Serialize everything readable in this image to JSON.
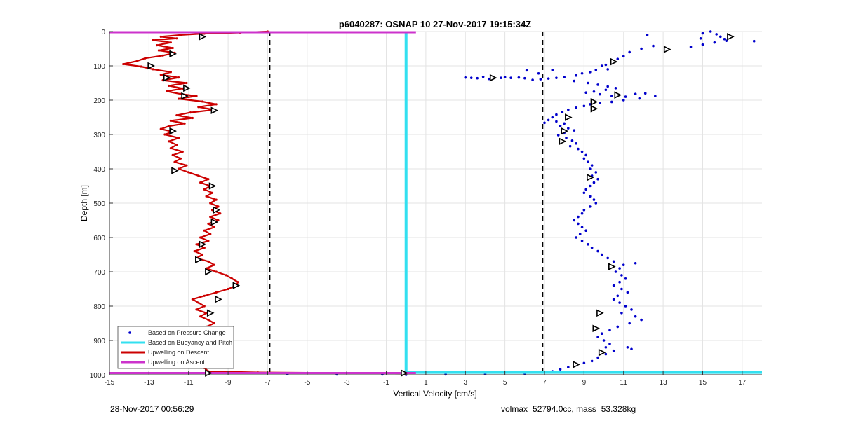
{
  "chart_data": {
    "type": "scatter",
    "title": "p6040287: OSNAP 10 27-Nov-2017 19:15:34Z",
    "xlabel": "Vertical Velocity [cm/s]",
    "ylabel": "Depth [m]",
    "xlim": [
      -15,
      18
    ],
    "ylim": [
      1000,
      0
    ],
    "y_reversed": true,
    "grid": true,
    "xticks": [
      -15,
      -13,
      -11,
      -9,
      -7,
      -5,
      -3,
      -1,
      1,
      3,
      5,
      7,
      9,
      11,
      13,
      15,
      17
    ],
    "yticks": [
      0,
      100,
      200,
      300,
      400,
      500,
      600,
      700,
      800,
      900,
      1000
    ],
    "legend_position": "bottom-left",
    "reference_lines_x": [
      -6.9,
      6.9
    ],
    "series": [
      {
        "name": "Based on Pressure Change",
        "kind": "points",
        "color": "#0000cc",
        "points": [
          [
            15.4,
            0
          ],
          [
            15.0,
            5
          ],
          [
            15.7,
            8
          ],
          [
            15.9,
            15
          ],
          [
            16.1,
            22
          ],
          [
            16.2,
            27
          ],
          [
            14.9,
            20
          ],
          [
            15.6,
            32
          ],
          [
            15.0,
            38
          ],
          [
            14.4,
            45
          ],
          [
            17.6,
            28
          ],
          [
            12.2,
            10
          ],
          [
            12.5,
            42
          ],
          [
            11.9,
            50
          ],
          [
            11.3,
            60
          ],
          [
            11.0,
            72
          ],
          [
            10.7,
            80
          ],
          [
            10.4,
            88
          ],
          [
            10.1,
            97
          ],
          [
            9.9,
            100
          ],
          [
            10.2,
            110
          ],
          [
            9.6,
            112
          ],
          [
            9.3,
            118
          ],
          [
            8.9,
            122
          ],
          [
            8.6,
            128
          ],
          [
            8.0,
            133
          ],
          [
            7.6,
            135
          ],
          [
            7.2,
            137
          ],
          [
            6.8,
            139
          ],
          [
            6.4,
            141
          ],
          [
            6.0,
            136
          ],
          [
            5.7,
            134
          ],
          [
            5.3,
            135
          ],
          [
            5.0,
            133
          ],
          [
            4.8,
            135
          ],
          [
            4.2,
            138
          ],
          [
            3.9,
            132
          ],
          [
            3.6,
            136
          ],
          [
            3.3,
            135
          ],
          [
            3.0,
            134
          ],
          [
            6.1,
            113
          ],
          [
            7.4,
            112
          ],
          [
            6.7,
            122
          ],
          [
            8.5,
            144
          ],
          [
            9.2,
            150
          ],
          [
            9.7,
            155
          ],
          [
            10.2,
            160
          ],
          [
            10.6,
            165
          ],
          [
            10.1,
            170
          ],
          [
            9.5,
            175
          ],
          [
            9.1,
            178
          ],
          [
            9.8,
            183
          ],
          [
            10.4,
            188
          ],
          [
            11.1,
            190
          ],
          [
            11.6,
            182
          ],
          [
            12.1,
            180
          ],
          [
            12.6,
            188
          ],
          [
            11.8,
            195
          ],
          [
            11.0,
            200
          ],
          [
            10.4,
            205
          ],
          [
            9.8,
            208
          ],
          [
            9.3,
            212
          ],
          [
            9.0,
            217
          ],
          [
            8.6,
            222
          ],
          [
            8.2,
            228
          ],
          [
            7.9,
            235
          ],
          [
            7.6,
            242
          ],
          [
            7.4,
            250
          ],
          [
            7.2,
            258
          ],
          [
            7.0,
            266
          ],
          [
            7.6,
            262
          ],
          [
            8.0,
            268
          ],
          [
            7.8,
            275
          ],
          [
            8.2,
            282
          ],
          [
            8.5,
            288
          ],
          [
            8.0,
            295
          ],
          [
            7.7,
            302
          ],
          [
            8.1,
            310
          ],
          [
            8.4,
            318
          ],
          [
            8.6,
            326
          ],
          [
            8.3,
            334
          ],
          [
            8.7,
            342
          ],
          [
            8.9,
            350
          ],
          [
            9.1,
            360
          ],
          [
            9.0,
            370
          ],
          [
            9.2,
            380
          ],
          [
            9.4,
            390
          ],
          [
            9.3,
            400
          ],
          [
            9.6,
            410
          ],
          [
            9.4,
            420
          ],
          [
            9.7,
            430
          ],
          [
            9.5,
            440
          ],
          [
            9.3,
            450
          ],
          [
            9.1,
            460
          ],
          [
            9.0,
            470
          ],
          [
            9.3,
            480
          ],
          [
            9.5,
            490
          ],
          [
            9.6,
            500
          ],
          [
            9.3,
            510
          ],
          [
            9.0,
            520
          ],
          [
            8.9,
            530
          ],
          [
            8.7,
            540
          ],
          [
            8.5,
            550
          ],
          [
            8.7,
            560
          ],
          [
            8.9,
            570
          ],
          [
            9.1,
            580
          ],
          [
            8.8,
            590
          ],
          [
            8.6,
            600
          ],
          [
            8.9,
            610
          ],
          [
            9.2,
            620
          ],
          [
            9.4,
            630
          ],
          [
            9.7,
            640
          ],
          [
            9.9,
            650
          ],
          [
            10.2,
            660
          ],
          [
            10.5,
            670
          ],
          [
            11.0,
            680
          ],
          [
            11.6,
            675
          ],
          [
            10.8,
            690
          ],
          [
            10.6,
            700
          ],
          [
            10.9,
            710
          ],
          [
            11.1,
            720
          ],
          [
            10.8,
            730
          ],
          [
            10.5,
            740
          ],
          [
            10.9,
            750
          ],
          [
            11.2,
            760
          ],
          [
            10.7,
            770
          ],
          [
            10.5,
            780
          ],
          [
            10.8,
            790
          ],
          [
            11.1,
            800
          ],
          [
            11.4,
            810
          ],
          [
            10.9,
            820
          ],
          [
            11.6,
            830
          ],
          [
            11.9,
            840
          ],
          [
            11.3,
            850
          ],
          [
            10.7,
            860
          ],
          [
            10.3,
            870
          ],
          [
            9.9,
            880
          ],
          [
            9.7,
            890
          ],
          [
            10.0,
            900
          ],
          [
            10.3,
            910
          ],
          [
            10.1,
            920
          ],
          [
            10.5,
            930
          ],
          [
            11.2,
            920
          ],
          [
            11.4,
            925
          ],
          [
            10.1,
            940
          ],
          [
            9.7,
            950
          ],
          [
            9.4,
            960
          ],
          [
            9.0,
            966
          ],
          [
            8.6,
            972
          ],
          [
            8.2,
            978
          ],
          [
            7.8,
            984
          ],
          [
            7.4,
            990
          ],
          [
            6.0,
            996
          ],
          [
            4.0,
            998
          ],
          [
            2.0,
            999
          ],
          [
            -1.2,
            999
          ],
          [
            -3.5,
            999
          ],
          [
            -6.0,
            998
          ],
          [
            0.0,
            1000
          ]
        ]
      },
      {
        "name": "Based on Buoyancy and Pitch",
        "kind": "line",
        "color": "#33e0f0",
        "line_x": 0.0,
        "line_depth": [
          0,
          990
        ],
        "bottom_x": [
          0.0,
          18
        ],
        "bottom_depth": 993
      },
      {
        "name": "Upwelling on Descent",
        "kind": "line",
        "color": "#cc0000",
        "points": [
          [
            -7.0,
            0
          ],
          [
            -8.4,
            3
          ],
          [
            -10.2,
            6
          ],
          [
            -11.4,
            10
          ],
          [
            -12.4,
            15
          ],
          [
            -11.6,
            20
          ],
          [
            -12.8,
            25
          ],
          [
            -11.9,
            32
          ],
          [
            -12.6,
            40
          ],
          [
            -11.8,
            48
          ],
          [
            -12.5,
            55
          ],
          [
            -11.7,
            62
          ],
          [
            -12.3,
            70
          ],
          [
            -13.2,
            78
          ],
          [
            -13.6,
            86
          ],
          [
            -14.3,
            95
          ],
          [
            -13.4,
            102
          ],
          [
            -12.8,
            110
          ],
          [
            -11.9,
            118
          ],
          [
            -12.4,
            126
          ],
          [
            -11.5,
            134
          ],
          [
            -12.3,
            142
          ],
          [
            -11.1,
            150
          ],
          [
            -12.0,
            158
          ],
          [
            -11.3,
            166
          ],
          [
            -12.1,
            174
          ],
          [
            -11.4,
            182
          ],
          [
            -10.6,
            188
          ],
          [
            -11.5,
            196
          ],
          [
            -10.3,
            204
          ],
          [
            -9.6,
            212
          ],
          [
            -10.5,
            220
          ],
          [
            -9.7,
            228
          ],
          [
            -10.9,
            236
          ],
          [
            -11.6,
            244
          ],
          [
            -10.8,
            252
          ],
          [
            -11.9,
            260
          ],
          [
            -11.2,
            268
          ],
          [
            -12.0,
            276
          ],
          [
            -12.4,
            284
          ],
          [
            -11.8,
            292
          ],
          [
            -12.2,
            300
          ],
          [
            -11.5,
            310
          ],
          [
            -12.0,
            320
          ],
          [
            -11.6,
            330
          ],
          [
            -11.9,
            340
          ],
          [
            -11.3,
            350
          ],
          [
            -11.8,
            360
          ],
          [
            -11.4,
            370
          ],
          [
            -11.7,
            380
          ],
          [
            -11.1,
            390
          ],
          [
            -11.5,
            400
          ],
          [
            -11.0,
            410
          ],
          [
            -10.5,
            420
          ],
          [
            -10.0,
            430
          ],
          [
            -10.4,
            440
          ],
          [
            -9.9,
            450
          ],
          [
            -10.2,
            460
          ],
          [
            -9.8,
            470
          ],
          [
            -10.1,
            480
          ],
          [
            -9.6,
            490
          ],
          [
            -9.9,
            500
          ],
          [
            -9.5,
            510
          ],
          [
            -9.8,
            520
          ],
          [
            -9.4,
            530
          ],
          [
            -9.9,
            540
          ],
          [
            -9.5,
            550
          ],
          [
            -10.0,
            560
          ],
          [
            -9.7,
            570
          ],
          [
            -10.2,
            580
          ],
          [
            -9.9,
            590
          ],
          [
            -10.4,
            600
          ],
          [
            -10.0,
            610
          ],
          [
            -10.6,
            620
          ],
          [
            -10.2,
            630
          ],
          [
            -10.7,
            640
          ],
          [
            -10.3,
            650
          ],
          [
            -10.6,
            660
          ],
          [
            -10.0,
            670
          ],
          [
            -9.7,
            680
          ],
          [
            -10.1,
            690
          ],
          [
            -9.6,
            700
          ],
          [
            -9.1,
            710
          ],
          [
            -8.8,
            720
          ],
          [
            -8.5,
            730
          ],
          [
            -8.6,
            740
          ],
          [
            -9.0,
            750
          ],
          [
            -9.6,
            760
          ],
          [
            -10.2,
            770
          ],
          [
            -10.8,
            780
          ],
          [
            -10.5,
            790
          ],
          [
            -10.2,
            800
          ],
          [
            -10.6,
            810
          ],
          [
            -10.1,
            820
          ],
          [
            -10.4,
            830
          ],
          [
            -10.0,
            840
          ],
          [
            -9.7,
            850
          ],
          [
            -10.1,
            860
          ],
          [
            -9.6,
            870
          ],
          [
            -10.0,
            880
          ],
          [
            -9.5,
            890
          ],
          [
            -9.9,
            900
          ],
          [
            -9.4,
            910
          ],
          [
            -9.7,
            920
          ],
          [
            -10.2,
            930
          ],
          [
            -9.8,
            940
          ],
          [
            -10.3,
            950
          ],
          [
            -10.0,
            960
          ],
          [
            -10.4,
            970
          ],
          [
            -10.2,
            980
          ],
          [
            -10.0,
            990
          ],
          [
            -7.5,
            993
          ],
          [
            -3.0,
            995
          ],
          [
            0.0,
            996
          ]
        ]
      },
      {
        "name": "Upwelling on Ascent",
        "kind": "line",
        "color": "#cc33cc",
        "top_x": [
          -15,
          0.5
        ],
        "top_depth": 0,
        "bottom_x": [
          -15,
          0.5
        ],
        "bottom_depth": 995
      }
    ],
    "triangle_markers": [
      [
        -10.3,
        15
      ],
      [
        -11.8,
        65
      ],
      [
        -12.9,
        100
      ],
      [
        -12.1,
        135
      ],
      [
        -11.1,
        165
      ],
      [
        -11.2,
        188
      ],
      [
        -9.7,
        230
      ],
      [
        -11.8,
        290
      ],
      [
        -11.7,
        405
      ],
      [
        -9.8,
        450
      ],
      [
        -9.6,
        520
      ],
      [
        -9.7,
        555
      ],
      [
        -10.3,
        620
      ],
      [
        -10.5,
        665
      ],
      [
        -10.0,
        700
      ],
      [
        -8.6,
        740
      ],
      [
        -9.5,
        780
      ],
      [
        -9.9,
        820
      ],
      [
        -9.9,
        880
      ],
      [
        -9.7,
        920
      ],
      [
        -10.6,
        970
      ],
      [
        -10.0,
        995
      ],
      [
        16.4,
        15
      ],
      [
        13.2,
        52
      ],
      [
        10.5,
        88
      ],
      [
        4.4,
        135
      ],
      [
        10.7,
        185
      ],
      [
        9.5,
        205
      ],
      [
        9.5,
        225
      ],
      [
        8.2,
        250
      ],
      [
        8.0,
        290
      ],
      [
        7.9,
        320
      ],
      [
        9.3,
        425
      ],
      [
        10.4,
        685
      ],
      [
        9.8,
        820
      ],
      [
        9.6,
        865
      ],
      [
        9.9,
        935
      ],
      [
        8.6,
        970
      ],
      [
        -0.1,
        995
      ]
    ],
    "legend": [
      {
        "label": "Based on Pressure Change",
        "style": "dot",
        "color": "#0000cc"
      },
      {
        "label": "Based on Buoyancy and Pitch",
        "style": "line",
        "color": "#33e0f0"
      },
      {
        "label": "Upwelling on Descent",
        "style": "line",
        "color": "#cc0000"
      },
      {
        "label": "Upwelling on Ascent",
        "style": "line",
        "color": "#cc33cc"
      }
    ]
  },
  "footer": {
    "left": "28-Nov-2017 00:56:29",
    "right": "volmax=52794.0cc, mass=53.328kg"
  }
}
